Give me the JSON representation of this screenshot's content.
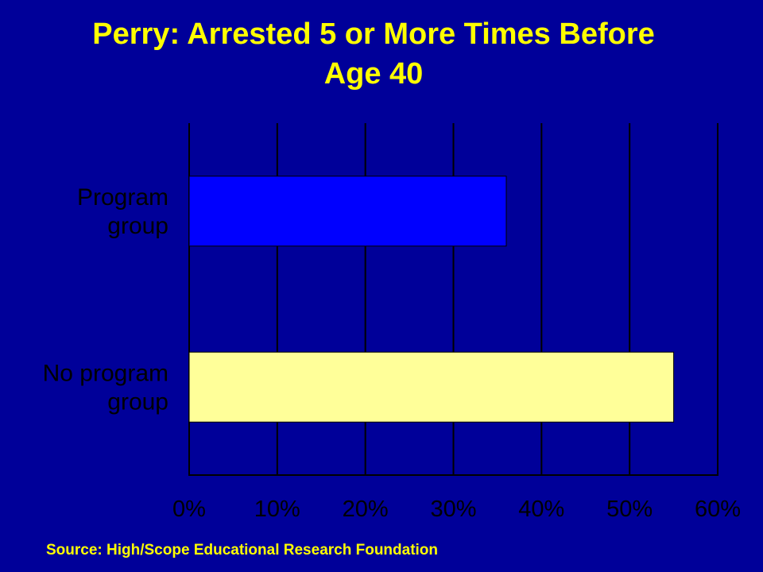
{
  "chart_data": {
    "type": "bar",
    "orientation": "horizontal",
    "title_lines": [
      "Perry: Arrested 5 or More Times Before",
      "Age 40"
    ],
    "categories": [
      {
        "lines": [
          "Program",
          "group"
        ]
      },
      {
        "lines": [
          "No program",
          "group"
        ]
      }
    ],
    "values": [
      36,
      55
    ],
    "bar_colors": [
      "#0000ff",
      "#ffff99"
    ],
    "xlim": [
      0,
      60
    ],
    "xticks": [
      "0%",
      "10%",
      "20%",
      "30%",
      "40%",
      "50%",
      "60%"
    ],
    "grid": true,
    "legend": "none"
  },
  "source": "Source: High/Scope Educational Research  Foundation",
  "colors": {
    "background": "#000099",
    "title": "#ffff00",
    "grid": "#000000"
  }
}
